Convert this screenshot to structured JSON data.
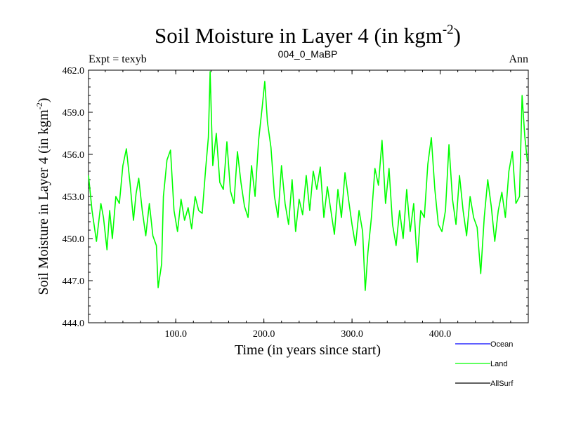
{
  "chart_data": {
    "type": "line",
    "title_main": "Soil Moisture in Layer 4 (in kgm",
    "title_sup": "-2",
    "title_close": ")",
    "subtitle_left": "Expt = texyb",
    "subtitle_center": "004_0_MaBP",
    "subtitle_right": "Ann",
    "xlabel": "Time (in years since start)",
    "ylabel_main": "Soil Moisture in Layer 4 (in kgm",
    "ylabel_sup": "-2",
    "ylabel_close": ")",
    "xlim": [
      1,
      500
    ],
    "ylim": [
      444.0,
      462.0
    ],
    "xticks": [
      100,
      200,
      300,
      400
    ],
    "xtick_labels": [
      "100.0",
      "200.0",
      "300.0",
      "400.0"
    ],
    "yticks": [
      444,
      447,
      450,
      453,
      456,
      459,
      462
    ],
    "ytick_labels": [
      "444.0",
      "447.0",
      "450.0",
      "453.0",
      "456.0",
      "459.0",
      "462.0"
    ],
    "legend_position": "bottom-right, below plot",
    "series": [
      {
        "name": "Ocean",
        "color": "#0000ff",
        "values": []
      },
      {
        "name": "Land",
        "color": "#00ff00",
        "x": [
          1,
          5,
          10,
          15,
          18,
          22,
          25,
          28,
          32,
          36,
          40,
          44,
          48,
          52,
          55,
          58,
          62,
          66,
          70,
          74,
          78,
          80,
          84,
          86,
          90,
          94,
          98,
          102,
          106,
          110,
          114,
          118,
          122,
          126,
          130,
          134,
          137,
          139,
          142,
          146,
          150,
          154,
          158,
          162,
          166,
          170,
          174,
          178,
          182,
          186,
          190,
          194,
          198,
          201,
          204,
          208,
          212,
          216,
          220,
          224,
          228,
          232,
          236,
          240,
          244,
          248,
          252,
          256,
          260,
          264,
          268,
          272,
          276,
          280,
          284,
          288,
          292,
          296,
          300,
          304,
          308,
          312,
          315,
          318,
          322,
          326,
          330,
          334,
          338,
          342,
          346,
          350,
          354,
          358,
          362,
          366,
          370,
          374,
          378,
          382,
          386,
          390,
          394,
          398,
          402,
          406,
          410,
          414,
          418,
          422,
          426,
          430,
          434,
          438,
          442,
          446,
          450,
          454,
          458,
          462,
          466,
          470,
          474,
          478,
          482,
          486,
          490,
          493,
          496,
          499
        ],
        "values": [
          454.5,
          452.0,
          449.8,
          452.5,
          451.5,
          449.2,
          452.0,
          450.0,
          453.0,
          452.5,
          455.2,
          456.4,
          454.0,
          451.3,
          453.2,
          454.3,
          452.0,
          450.2,
          452.5,
          450.2,
          449.5,
          446.5,
          448.2,
          453.0,
          455.6,
          456.3,
          452.0,
          450.5,
          452.8,
          451.3,
          452.2,
          450.7,
          453.0,
          452.0,
          451.8,
          455.0,
          457.2,
          461.9,
          455.2,
          457.5,
          454.0,
          453.5,
          456.9,
          453.4,
          452.5,
          456.2,
          454.0,
          452.3,
          451.5,
          455.2,
          453.0,
          457.0,
          459.3,
          461.2,
          458.3,
          456.5,
          453.0,
          451.5,
          455.2,
          452.5,
          451.0,
          454.2,
          450.5,
          452.8,
          451.7,
          454.5,
          452.0,
          454.8,
          453.5,
          455.1,
          451.5,
          453.7,
          452.0,
          450.3,
          453.5,
          451.5,
          454.7,
          452.8,
          451.0,
          449.5,
          452.0,
          450.5,
          446.3,
          449.0,
          451.5,
          455.0,
          453.8,
          457.0,
          452.5,
          455.0,
          451.0,
          449.5,
          452.0,
          450.0,
          453.5,
          450.5,
          452.5,
          448.3,
          452.0,
          451.5,
          455.3,
          457.2,
          453.5,
          451.0,
          450.5,
          452.0,
          456.7,
          452.8,
          451.0,
          454.5,
          452.0,
          450.2,
          453.0,
          451.5,
          450.8,
          447.5,
          451.5,
          454.2,
          452.3,
          449.8,
          452.0,
          453.3,
          451.5,
          454.8,
          456.2,
          452.5,
          453.0,
          460.2,
          457.3,
          455.5
        ]
      },
      {
        "name": "AllSurf",
        "color": "#000000",
        "values": []
      }
    ]
  }
}
